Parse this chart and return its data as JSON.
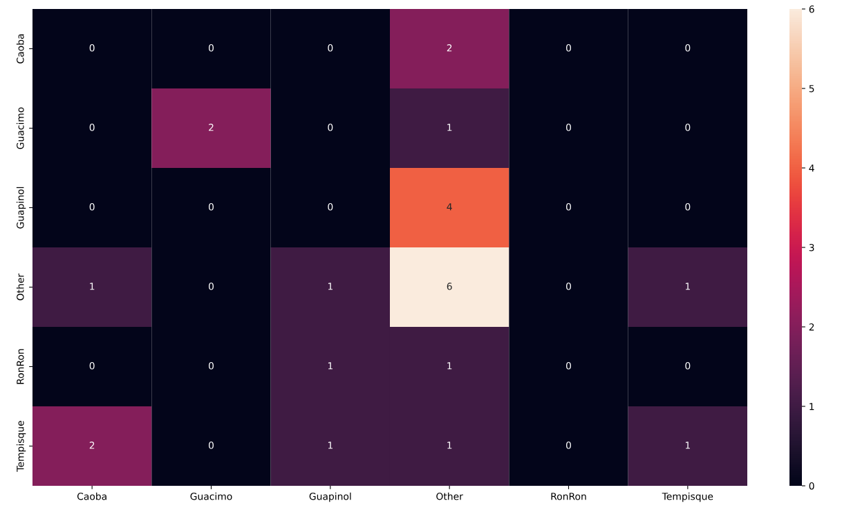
{
  "chart_data": {
    "type": "heatmap",
    "categories": [
      "Caoba",
      "Guacimo",
      "Guapinol",
      "Other",
      "RonRon",
      "Tempisque"
    ],
    "y_categories": [
      "Caoba",
      "Guacimo",
      "Guapinol",
      "Other",
      "RonRon",
      "Tempisque"
    ],
    "cells": [
      [
        0,
        0,
        0,
        2,
        0,
        0
      ],
      [
        0,
        2,
        0,
        1,
        0,
        0
      ],
      [
        0,
        0,
        0,
        4,
        0,
        0
      ],
      [
        1,
        0,
        1,
        6,
        0,
        1
      ],
      [
        0,
        0,
        1,
        1,
        0,
        0
      ],
      [
        2,
        0,
        1,
        1,
        0,
        1
      ]
    ],
    "clim": [
      0,
      6
    ],
    "cticks": [
      0,
      1,
      2,
      3,
      4,
      5,
      6
    ],
    "data_labels": true
  }
}
